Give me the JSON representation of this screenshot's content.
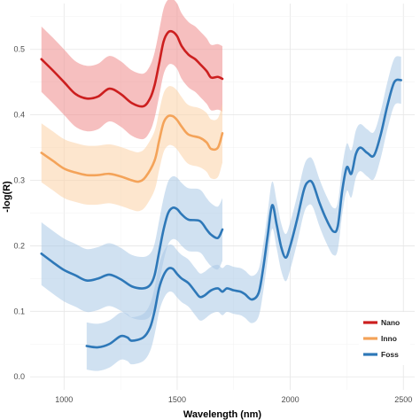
{
  "chart_data": {
    "type": "line",
    "xlabel": "Wavelength (nm)",
    "ylabel": "-log(R)",
    "xlim": [
      850,
      2550
    ],
    "ylim": [
      -0.02,
      0.57
    ],
    "xticks": [
      1000,
      1500,
      2000,
      2500
    ],
    "yticks": [
      0.0,
      0.1,
      0.2,
      0.3,
      0.4,
      0.5
    ],
    "ytick_labels": [
      "0.0",
      "0.1",
      "0.2",
      "0.3",
      "0.4",
      "0.5"
    ],
    "grid": true,
    "legend_position": "bottom-right",
    "legend": [
      {
        "label": "Nano",
        "color": "#cc1f1f"
      },
      {
        "label": "Inno",
        "color": "#f4a359"
      },
      {
        "label": "Foss",
        "color": "#2e78b8"
      }
    ],
    "series": [
      {
        "name": "Nano",
        "color": "#cc1f1f",
        "band_color": "#ef8a8a",
        "band_width": 0.05,
        "x": [
          900,
          950,
          1000,
          1050,
          1100,
          1150,
          1200,
          1250,
          1300,
          1350,
          1380,
          1400,
          1420,
          1440,
          1460,
          1480,
          1500,
          1520,
          1550,
          1580,
          1600,
          1630,
          1650,
          1680,
          1700
        ],
        "values": [
          0.485,
          0.468,
          0.45,
          0.432,
          0.425,
          0.428,
          0.44,
          0.432,
          0.418,
          0.413,
          0.425,
          0.445,
          0.478,
          0.512,
          0.526,
          0.527,
          0.52,
          0.505,
          0.492,
          0.485,
          0.478,
          0.467,
          0.457,
          0.458,
          0.455
        ]
      },
      {
        "name": "Inno",
        "color": "#f4a359",
        "band_color": "#fbd2a6",
        "band_width": 0.045,
        "x": [
          900,
          950,
          1000,
          1050,
          1100,
          1150,
          1200,
          1250,
          1300,
          1330,
          1360,
          1400,
          1420,
          1440,
          1460,
          1480,
          1500,
          1520,
          1550,
          1600,
          1630,
          1650,
          1680,
          1700
        ],
        "values": [
          0.342,
          0.33,
          0.318,
          0.312,
          0.308,
          0.308,
          0.31,
          0.306,
          0.3,
          0.298,
          0.305,
          0.33,
          0.36,
          0.388,
          0.398,
          0.398,
          0.392,
          0.382,
          0.37,
          0.365,
          0.358,
          0.348,
          0.35,
          0.372
        ]
      },
      {
        "name": "Foss",
        "color": "#2e78b8",
        "band_color": "#a9c9e6",
        "band_width": 0.048,
        "x": [
          900,
          950,
          1000,
          1050,
          1100,
          1150,
          1200,
          1250,
          1300,
          1350,
          1380,
          1400,
          1420,
          1440,
          1460,
          1480,
          1500,
          1520,
          1550,
          1600,
          1630,
          1650,
          1680,
          1700
        ],
        "values": [
          0.188,
          0.175,
          0.163,
          0.155,
          0.147,
          0.15,
          0.156,
          0.149,
          0.138,
          0.135,
          0.14,
          0.155,
          0.19,
          0.225,
          0.25,
          0.258,
          0.256,
          0.248,
          0.24,
          0.238,
          0.225,
          0.217,
          0.212,
          0.225
        ]
      },
      {
        "name": "Foss",
        "color": "#2e78b8",
        "band_color": "#a9c9e6",
        "band_width": 0.05,
        "x": [
          900,
          950,
          1000,
          1050,
          1100,
          1150,
          1200,
          1250,
          1300,
          1350,
          1380,
          1400,
          1420,
          1440,
          1460,
          1480,
          1500,
          1520,
          1550,
          1600,
          1630,
          1650,
          1680,
          1700
        ],
        "values": [
          0.188,
          0.175,
          0.163,
          0.155,
          0.147,
          0.15,
          0.156,
          0.149,
          0.138,
          0.135,
          0.14,
          0.155,
          0.19,
          0.225,
          0.25,
          0.258,
          0.256,
          0.248,
          0.24,
          0.238,
          0.225,
          0.217,
          0.212,
          0.225
        ]
      },
      {
        "name": "Foss",
        "color": "#2e78b8",
        "band_color": "#a9c9e6",
        "band_width": 0.036,
        "x": [
          1100,
          1150,
          1200,
          1250,
          1280,
          1300,
          1350,
          1380,
          1400,
          1420,
          1440,
          1460,
          1480,
          1500,
          1520,
          1550,
          1580,
          1600,
          1620,
          1650,
          1680,
          1700,
          1720,
          1750,
          1780,
          1800,
          1830,
          1860,
          1880,
          1900,
          1920,
          1940,
          1960,
          1980,
          2000,
          2030,
          2060,
          2080,
          2100,
          2130,
          2160,
          2190,
          2210,
          2230,
          2250,
          2270,
          2290,
          2310,
          2340,
          2370,
          2400,
          2430,
          2460,
          2490
        ],
        "values": [
          0.047,
          0.045,
          0.05,
          0.062,
          0.06,
          0.055,
          0.06,
          0.075,
          0.1,
          0.135,
          0.155,
          0.165,
          0.165,
          0.157,
          0.15,
          0.143,
          0.13,
          0.122,
          0.124,
          0.132,
          0.135,
          0.13,
          0.135,
          0.132,
          0.13,
          0.126,
          0.118,
          0.128,
          0.165,
          0.215,
          0.262,
          0.232,
          0.198,
          0.182,
          0.2,
          0.24,
          0.285,
          0.298,
          0.295,
          0.265,
          0.24,
          0.222,
          0.23,
          0.285,
          0.32,
          0.31,
          0.34,
          0.35,
          0.342,
          0.338,
          0.37,
          0.415,
          0.45,
          0.453
        ]
      }
    ]
  }
}
